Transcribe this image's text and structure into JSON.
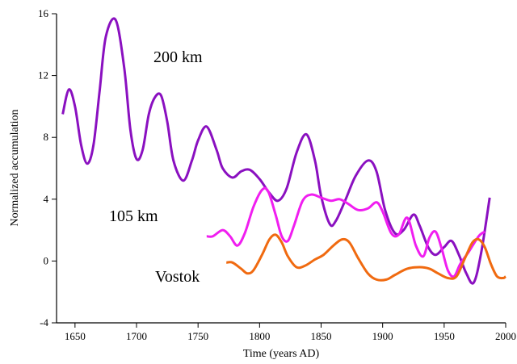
{
  "chart_data": {
    "type": "line",
    "x_label": "Time (years AD)",
    "y_label": "Normalized accumulation",
    "xlim": [
      1635,
      2000
    ],
    "ylim": [
      -4,
      16
    ],
    "xticks": [
      1650,
      1700,
      1750,
      1800,
      1850,
      1900,
      1950,
      2000
    ],
    "yticks": [
      -4,
      0,
      4,
      8,
      12,
      16
    ],
    "series": [
      {
        "name": "200 km",
        "color": "#8a10c0",
        "x": [
          1640,
          1645,
          1650,
          1655,
          1660,
          1665,
          1670,
          1675,
          1683,
          1690,
          1695,
          1700,
          1705,
          1710,
          1715,
          1720,
          1725,
          1730,
          1738,
          1745,
          1750,
          1757,
          1765,
          1770,
          1778,
          1785,
          1792,
          1800,
          1808,
          1815,
          1822,
          1830,
          1838,
          1845,
          1850,
          1857,
          1862,
          1870,
          1878,
          1888,
          1895,
          1902,
          1910,
          1917,
          1925,
          1930,
          1937,
          1943,
          1950,
          1956,
          1962,
          1968,
          1974,
          1980,
          1987
        ],
        "values": [
          9.5,
          11.1,
          10.0,
          7.5,
          6.3,
          7.5,
          11,
          14.5,
          15.6,
          12.5,
          8.5,
          6.6,
          7.2,
          9.5,
          10.6,
          10.7,
          9,
          6.5,
          5.2,
          6.5,
          7.8,
          8.7,
          7.2,
          6,
          5.4,
          5.8,
          5.9,
          5.3,
          4.4,
          3.9,
          4.7,
          7,
          8.2,
          6.5,
          4.2,
          2.4,
          2.6,
          4,
          5.5,
          6.5,
          5.8,
          3.3,
          1.8,
          2,
          3.0,
          2.3,
          0.9,
          0.4,
          0.9,
          1.3,
          0.4,
          -0.8,
          -1.4,
          0.5,
          4.1
        ]
      },
      {
        "name": "105 km",
        "color": "#f01ef0",
        "x": [
          1757,
          1762,
          1770,
          1776,
          1782,
          1788,
          1795,
          1802,
          1807,
          1813,
          1818,
          1823,
          1828,
          1835,
          1842,
          1850,
          1858,
          1865,
          1872,
          1880,
          1888,
          1895,
          1900,
          1907,
          1913,
          1920,
          1927,
          1933,
          1938,
          1943,
          1948,
          1953,
          1958,
          1963,
          1970,
          1978,
          1983
        ],
        "values": [
          1.6,
          1.6,
          2.0,
          1.6,
          1.0,
          1.8,
          3.5,
          4.6,
          4.5,
          3.0,
          1.6,
          1.3,
          2.3,
          3.9,
          4.3,
          4.1,
          3.9,
          4.0,
          3.7,
          3.3,
          3.4,
          3.8,
          3.2,
          1.8,
          1.7,
          2.8,
          1.0,
          0.3,
          1.5,
          1.9,
          0.8,
          -0.6,
          -1.0,
          -0.2,
          0.6,
          1.6,
          1.9
        ]
      },
      {
        "name": "Vostok",
        "color": "#f06a10",
        "x": [
          1773,
          1778,
          1785,
          1790,
          1795,
          1802,
          1808,
          1813,
          1818,
          1823,
          1830,
          1837,
          1845,
          1852,
          1860,
          1867,
          1873,
          1880,
          1888,
          1895,
          1903,
          1910,
          1920,
          1930,
          1938,
          1945,
          1953,
          1960,
          1967,
          1973,
          1978,
          1983,
          1988,
          1993,
          1998,
          2000
        ],
        "values": [
          -0.1,
          -0.1,
          -0.5,
          -0.8,
          -0.6,
          0.4,
          1.4,
          1.7,
          1.2,
          0.3,
          -0.4,
          -0.3,
          0.1,
          0.4,
          1.0,
          1.4,
          1.2,
          0.2,
          -0.8,
          -1.2,
          -1.2,
          -0.9,
          -0.5,
          -0.4,
          -0.5,
          -0.8,
          -1.1,
          -1.0,
          0.2,
          1.2,
          1.4,
          0.9,
          -0.2,
          -1.0,
          -1.1,
          -1.0
        ]
      }
    ]
  }
}
